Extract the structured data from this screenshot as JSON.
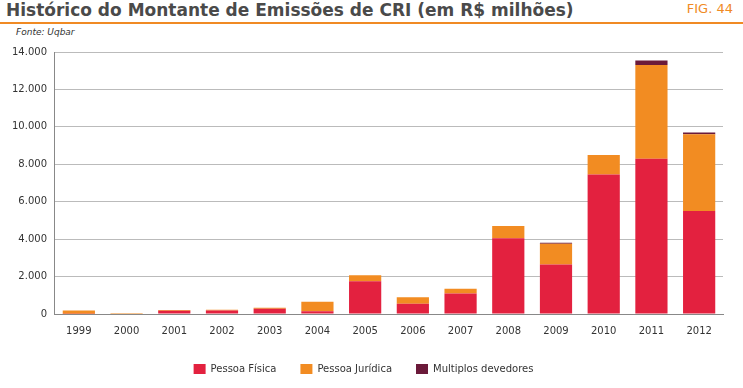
{
  "chart_data": {
    "type": "bar",
    "title": "Histórico do Montante de Emissões de CRI (em R$ milhões)",
    "subtitle": "Fonte: Uqbar",
    "annotations": [
      "FIG. 44"
    ],
    "categories": [
      "1999",
      "2000",
      "2001",
      "2002",
      "2003",
      "2004",
      "2005",
      "2006",
      "2007",
      "2008",
      "2009",
      "2010",
      "2011",
      "2012"
    ],
    "series": [
      {
        "name": "Pessoa Física",
        "color": "#e3213f",
        "values": [
          10,
          0,
          180,
          190,
          280,
          150,
          1750,
          550,
          1100,
          4050,
          2650,
          7450,
          8300,
          5500
        ]
      },
      {
        "name": "Pessoa Jurídica",
        "color": "#f28c22",
        "values": [
          180,
          60,
          40,
          40,
          50,
          500,
          320,
          350,
          250,
          650,
          1100,
          1050,
          5000,
          4100
        ]
      },
      {
        "name": "Multiplos devedores",
        "color": "#6b1a3a",
        "values": [
          0,
          0,
          0,
          0,
          0,
          0,
          0,
          0,
          0,
          0,
          60,
          0,
          250,
          100
        ]
      }
    ],
    "stacked": true,
    "ylim": [
      0,
      14000
    ],
    "yticks": [
      0,
      {
        "value": 2000,
        "label": "2.000"
      },
      {
        "value": 4000,
        "label": "4.000"
      },
      {
        "value": 6000,
        "label": "6.000"
      },
      {
        "value": 8000,
        "label": "8.000"
      },
      {
        "value": 10000,
        "label": "10.000"
      },
      {
        "value": 12000,
        "label": "12.000"
      },
      {
        "value": 14000,
        "label": "14.000"
      }
    ],
    "grid": true,
    "legend": "bottom"
  }
}
